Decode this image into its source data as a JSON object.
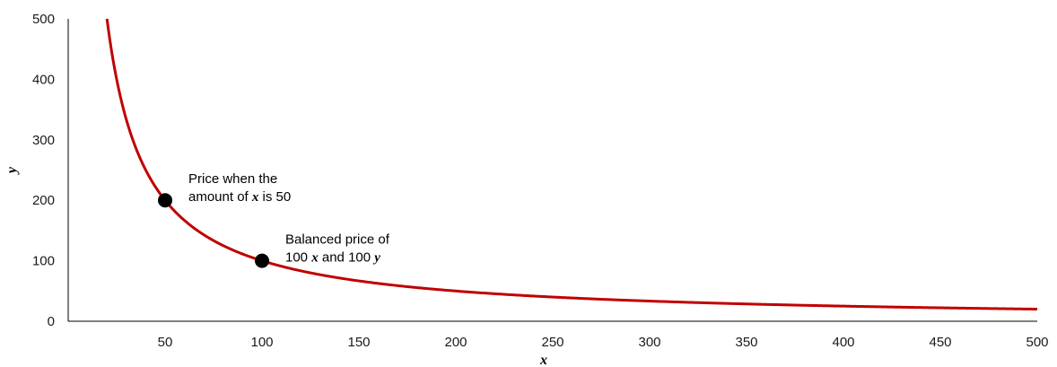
{
  "chart_data": {
    "type": "line",
    "title": "",
    "xlabel": "x",
    "ylabel": "y",
    "xlim": [
      0,
      500
    ],
    "ylim": [
      0,
      500
    ],
    "x_ticks": [
      50,
      100,
      150,
      200,
      250,
      300,
      350,
      400,
      450,
      500
    ],
    "y_ticks": [
      0,
      100,
      200,
      300,
      400,
      500
    ],
    "grid": false,
    "legend": "none",
    "series": [
      {
        "function": "y = 10000 / x",
        "x_range": [
          20,
          500
        ],
        "color": "#c00000",
        "x": [
          20,
          25,
          30,
          40,
          50,
          60,
          75,
          100,
          125,
          150,
          200,
          250,
          300,
          350,
          400,
          450,
          500
        ],
        "y": [
          500,
          400,
          333.3,
          250,
          200,
          166.7,
          133.3,
          100,
          80,
          66.7,
          50,
          40,
          33.3,
          28.6,
          25,
          22.2,
          20
        ]
      }
    ],
    "points": [
      {
        "x": 50,
        "y": 200,
        "label_lines": [
          [
            "Price when the"
          ],
          [
            "amount of ",
            {
              "v": "x"
            },
            " is 50"
          ]
        ]
      },
      {
        "x": 100,
        "y": 100,
        "label_lines": [
          [
            "Balanced price of"
          ],
          [
            "100 ",
            {
              "v": "x"
            },
            " and 100 ",
            {
              "v": "y"
            }
          ]
        ]
      }
    ],
    "colors": {
      "curve": "#c00000",
      "point": "#000000",
      "axis": "#000000"
    }
  }
}
